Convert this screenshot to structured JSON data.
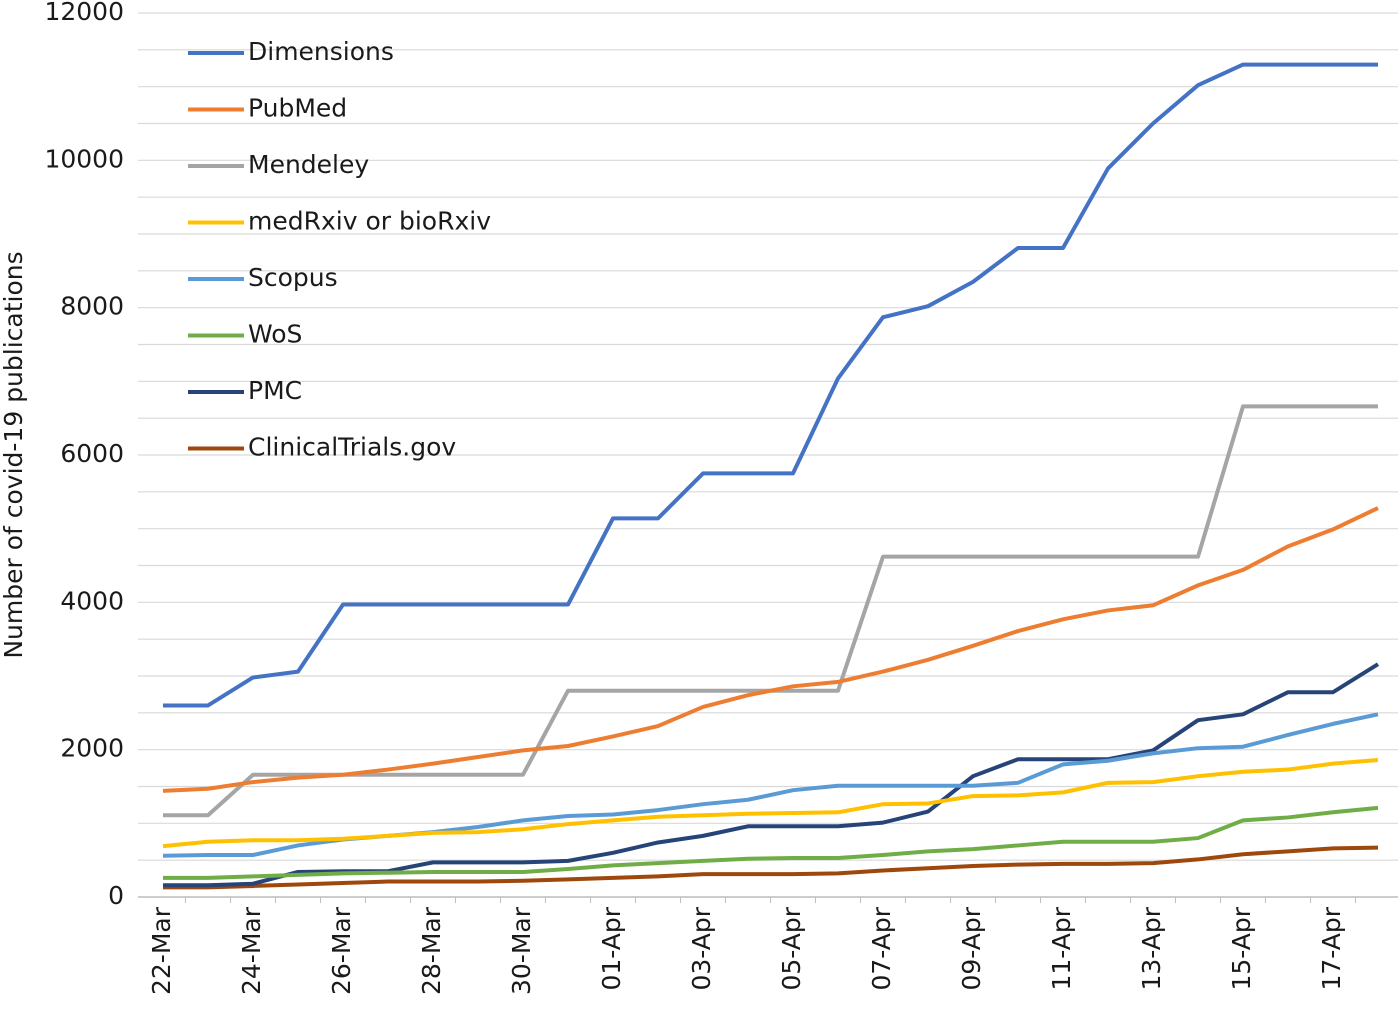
{
  "chart_data": {
    "type": "line",
    "y_label": "Number of covid-19 publications",
    "categories": [
      "22-Mar",
      null,
      "24-Mar",
      null,
      "26-Mar",
      null,
      "28-Mar",
      null,
      "30-Mar",
      null,
      "01-Apr",
      null,
      "03-Apr",
      null,
      "05-Apr",
      null,
      "07-Apr",
      null,
      "09-Apr",
      null,
      "11-Apr",
      null,
      "13-Apr",
      null,
      "15-Apr",
      null,
      "17-Apr",
      null
    ],
    "ylim": [
      0,
      12000
    ],
    "yticks": [
      0,
      2000,
      4000,
      6000,
      8000,
      10000,
      12000
    ],
    "ygrid": [
      0,
      500,
      1000,
      1500,
      2000,
      2500,
      3000,
      3500,
      4000,
      4500,
      5000,
      5500,
      6000,
      6500,
      7000,
      7500,
      8000,
      8500,
      9000,
      9500,
      10000,
      10500,
      11000,
      11500,
      12000
    ],
    "grid": true,
    "legend": "upper left",
    "series": [
      {
        "name": "Dimensions",
        "color": "#4472c4",
        "values": [
          2600,
          2600,
          2980,
          3060,
          3970,
          3970,
          3970,
          3970,
          3970,
          3970,
          5140,
          5140,
          5750,
          5750,
          5750,
          7040,
          7870,
          8020,
          8350,
          8810,
          8810,
          9890,
          10500,
          11020,
          11300,
          11300,
          11300,
          11300
        ]
      },
      {
        "name": "PubMed",
        "color": "#ed7d31",
        "values": [
          1440,
          1470,
          1560,
          1620,
          1660,
          1730,
          1810,
          1900,
          1990,
          2050,
          2180,
          2320,
          2580,
          2740,
          2860,
          2920,
          3060,
          3220,
          3410,
          3610,
          3770,
          3890,
          3960,
          4230,
          4440,
          4760,
          4990,
          5280
        ]
      },
      {
        "name": "Mendeley",
        "color": "#a5a5a5",
        "values": [
          1110,
          1110,
          1660,
          1660,
          1660,
          1660,
          1660,
          1660,
          1660,
          2800,
          2800,
          2800,
          2800,
          2800,
          2800,
          2800,
          4620,
          4620,
          4620,
          4620,
          4620,
          4620,
          4620,
          4620,
          6660,
          6660,
          6660,
          6660
        ]
      },
      {
        "name": "medRxiv or bioRxiv",
        "color": "#ffc000",
        "values": [
          690,
          750,
          770,
          770,
          790,
          830,
          870,
          880,
          920,
          990,
          1040,
          1090,
          1110,
          1130,
          1140,
          1150,
          1260,
          1270,
          1370,
          1380,
          1420,
          1550,
          1560,
          1640,
          1700,
          1730,
          1810,
          1860
        ]
      },
      {
        "name": "Scopus",
        "color": "#5b9bd5",
        "values": [
          560,
          570,
          570,
          700,
          780,
          830,
          880,
          950,
          1040,
          1100,
          1120,
          1180,
          1260,
          1320,
          1450,
          1510,
          1510,
          1510,
          1510,
          1550,
          1800,
          1850,
          1950,
          2020,
          2040,
          2200,
          2350,
          2480
        ]
      },
      {
        "name": "WoS",
        "color": "#70ad47",
        "values": [
          260,
          260,
          280,
          300,
          320,
          330,
          340,
          340,
          340,
          380,
          430,
          460,
          490,
          520,
          530,
          530,
          570,
          620,
          650,
          700,
          750,
          750,
          750,
          800,
          1040,
          1080,
          1150,
          1210
        ]
      },
      {
        "name": "PMC",
        "color": "#264478",
        "values": [
          160,
          160,
          180,
          340,
          350,
          350,
          470,
          470,
          470,
          490,
          600,
          740,
          830,
          960,
          960,
          960,
          1010,
          1160,
          1640,
          1870,
          1870,
          1870,
          1990,
          2400,
          2480,
          2780,
          2780,
          3160
        ]
      },
      {
        "name": "ClinicalTrials.gov",
        "color": "#9e480e",
        "values": [
          130,
          130,
          150,
          170,
          190,
          210,
          210,
          210,
          220,
          240,
          260,
          280,
          310,
          310,
          310,
          320,
          360,
          390,
          420,
          440,
          450,
          450,
          460,
          510,
          580,
          620,
          660,
          670
        ]
      }
    ]
  }
}
